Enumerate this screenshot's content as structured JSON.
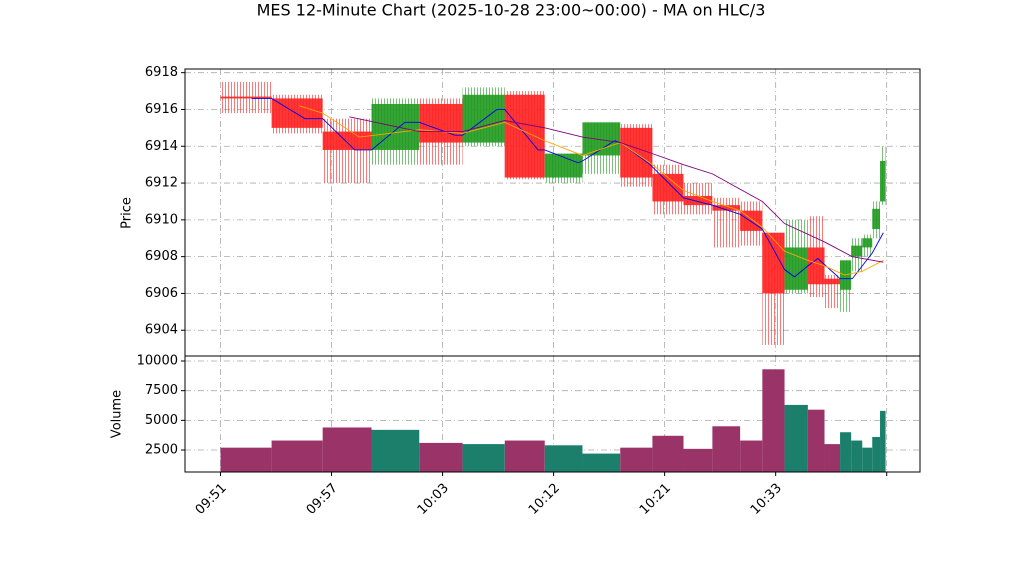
{
  "chart_data": [
    {
      "type": "candlestick",
      "title": "MES 12-Minute Chart (2025-10-28 23:00~00:00) - MA on HLC/3",
      "ylabel": "Price",
      "x": [
        0,
        4.6,
        9.2,
        13.6,
        17.9,
        21.8,
        25.6,
        29.2,
        32.6,
        36.0,
        38.9,
        41.7,
        44.3,
        46.8,
        48.8,
        50.8,
        52.9,
        54.4,
        55.8,
        56.8,
        57.8,
        58.7,
        59.4
      ],
      "x_end": [
        4.6,
        9.2,
        13.6,
        17.9,
        21.8,
        25.6,
        29.2,
        32.6,
        36.0,
        38.9,
        41.7,
        44.3,
        46.8,
        48.8,
        50.8,
        52.9,
        54.4,
        55.8,
        56.8,
        57.8,
        58.7,
        59.4,
        59.9
      ],
      "open": [
        6916.7,
        6916.6,
        6914.8,
        6913.8,
        6916.3,
        6914.2,
        6916.8,
        6912.3,
        6913.5,
        6915.0,
        6912.5,
        6911.3,
        6910.8,
        6910.5,
        6909.3,
        6906.2,
        6908.5,
        6906.8,
        6906.2,
        6908.0,
        6908.5,
        6909.5,
        6911.0
      ],
      "high": [
        6917.5,
        6916.8,
        6915.5,
        6916.6,
        6916.6,
        6917.2,
        6917.0,
        6913.6,
        6915.3,
        6915.2,
        6913.0,
        6912.0,
        6911.2,
        6911.0,
        6909.3,
        6910.0,
        6910.2,
        6907.0,
        6907.8,
        6909.0,
        6909.2,
        6911.0,
        6914.0
      ],
      "low": [
        6915.8,
        6914.7,
        6912.0,
        6913.0,
        6913.0,
        6914.0,
        6912.2,
        6912.0,
        6912.5,
        6911.8,
        6910.3,
        6910.3,
        6908.5,
        6908.6,
        6903.2,
        6906.0,
        6905.8,
        6905.2,
        6905.0,
        6907.2,
        6908.0,
        6909.0,
        6910.8
      ],
      "close": [
        6916.6,
        6915.0,
        6913.8,
        6916.3,
        6914.2,
        6916.8,
        6912.3,
        6913.6,
        6915.3,
        6912.3,
        6911.0,
        6910.8,
        6910.5,
        6909.4,
        6906.0,
        6908.5,
        6906.5,
        6906.5,
        6907.8,
        6908.6,
        6909.0,
        6910.6,
        6913.2
      ],
      "up_color": "#1f9a1f",
      "down_color": "#ff2020",
      "series": [
        {
          "color": "#0000ee",
          "x": [
            2.8,
            4.6,
            7.6,
            9.2,
            12.1,
            13.6,
            16.6,
            17.9,
            21.1,
            21.8,
            24.9,
            25.6,
            28.6,
            29.2,
            32.2,
            32.6,
            35.5,
            36.0,
            38.7,
            41.7,
            44.3,
            46.8,
            48.8,
            50.8,
            51.7,
            52.9,
            53.8,
            55.8,
            56.9,
            57.8,
            58.7,
            59.7
          ],
          "values": [
            6916.6,
            6916.6,
            6915.5,
            6915.5,
            6913.8,
            6913.8,
            6915.3,
            6915.3,
            6914.6,
            6914.6,
            6916.0,
            6916.0,
            6913.8,
            6913.8,
            6913.1,
            6913.2,
            6914.3,
            6914.2,
            6913.0,
            6911.2,
            6910.8,
            6910.3,
            6909.5,
            6907.3,
            6906.9,
            6907.5,
            6907.9,
            6906.8,
            6906.8,
            6907.5,
            6908.2,
            6909.3
          ]
        },
        {
          "color": "#ffa500",
          "x": [
            7.1,
            9.2,
            12.5,
            17.9,
            21.8,
            25.6,
            29.2,
            32.6,
            36.0,
            38.9,
            41.7,
            44.3,
            46.8,
            48.8,
            50.8,
            52.9,
            54.4,
            56.2,
            57.8,
            59.7
          ],
          "values": [
            6916.2,
            6915.8,
            6914.5,
            6914.9,
            6914.7,
            6915.3,
            6914.3,
            6913.5,
            6914.2,
            6913.0,
            6911.6,
            6911.0,
            6910.5,
            6909.6,
            6908.3,
            6907.8,
            6907.5,
            6907.0,
            6907.2,
            6907.8
          ]
        },
        {
          "color": "#800080",
          "x": [
            11.6,
            17.9,
            21.8,
            25.6,
            29.2,
            32.6,
            36.0,
            38.9,
            41.7,
            44.3,
            48.8,
            50.8,
            54.4,
            56.9,
            59.7
          ],
          "values": [
            6915.6,
            6914.8,
            6914.8,
            6915.4,
            6915.0,
            6914.5,
            6914.2,
            6913.6,
            6913.0,
            6912.5,
            6911.0,
            6909.8,
            6908.8,
            6908.0,
            6907.7
          ]
        }
      ],
      "xlim": [
        -3.2,
        63.0
      ],
      "xticks": [
        {
          "value": 0,
          "label": "09:51"
        },
        {
          "value": 10,
          "label": "09:57"
        },
        {
          "value": 20,
          "label": "10:03"
        },
        {
          "value": 30,
          "label": "10:12"
        },
        {
          "value": 40,
          "label": "10:21"
        },
        {
          "value": 50,
          "label": "10:33"
        },
        {
          "value": 60,
          "label": null
        }
      ],
      "ylim": [
        6902.6,
        6918.2
      ],
      "yticks": [
        6904,
        6906,
        6908,
        6910,
        6912,
        6914,
        6916,
        6918
      ],
      "grid": true
    },
    {
      "type": "bar",
      "ylabel": "Volume",
      "x": [
        0,
        4.6,
        9.2,
        13.6,
        17.9,
        21.8,
        25.6,
        29.2,
        32.6,
        36.0,
        38.9,
        41.7,
        44.3,
        46.8,
        48.8,
        50.8,
        52.9,
        54.4,
        55.8,
        56.8,
        57.8,
        58.7,
        59.4
      ],
      "x_end": [
        4.6,
        9.2,
        13.6,
        17.9,
        21.8,
        25.6,
        29.2,
        32.6,
        36.0,
        38.9,
        41.7,
        44.3,
        46.8,
        48.8,
        50.8,
        52.9,
        54.4,
        55.8,
        56.8,
        57.8,
        58.7,
        59.4,
        59.9
      ],
      "values": [
        2700,
        3300,
        4400,
        4200,
        3100,
        3000,
        3300,
        2900,
        2200,
        2700,
        3700,
        2600,
        4500,
        3300,
        9300,
        6300,
        5900,
        3000,
        4000,
        3300,
        2700,
        3600,
        5800
      ],
      "colors": [
        "#9a3468",
        "#9a3468",
        "#9a3468",
        "#1b7f6c",
        "#9a3468",
        "#1b7f6c",
        "#9a3468",
        "#1b7f6c",
        "#1b7f6c",
        "#9a3468",
        "#9a3468",
        "#9a3468",
        "#9a3468",
        "#9a3468",
        "#9a3468",
        "#1b7f6c",
        "#9a3468",
        "#9a3468",
        "#1b7f6c",
        "#1b7f6c",
        "#1b7f6c",
        "#1b7f6c",
        "#1b7f6c"
      ],
      "ylim": [
        650,
        10420
      ],
      "yticks": [
        2500,
        5000,
        7500,
        10000
      ],
      "grid": true
    }
  ]
}
